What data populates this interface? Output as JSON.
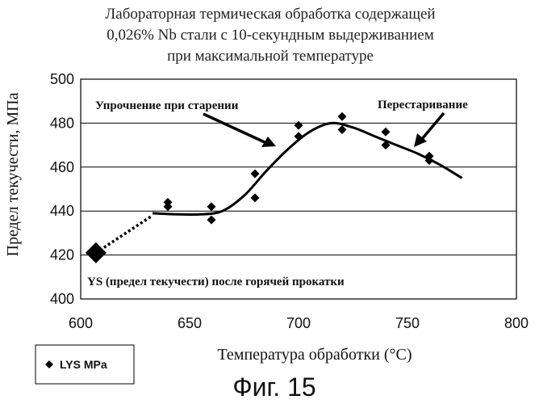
{
  "chart_data": {
    "type": "scatter",
    "title_lines": [
      "Лабораторная термическая обработка содержащей",
      "0,026% Nb стали с 10-секундным выдерживанием",
      "при максимальной температуре"
    ],
    "xlabel": "Температура обработки (°C)",
    "ylabel": "Предел текучести, МПа",
    "xlim": [
      600,
      800
    ],
    "ylim": [
      400,
      500
    ],
    "x_ticks": [
      600,
      650,
      700,
      750,
      800
    ],
    "y_ticks": [
      400,
      420,
      440,
      460,
      480,
      500
    ],
    "x_tick_labels": [
      "600",
      "650",
      "700",
      "750",
      "800"
    ],
    "y_tick_labels": [
      "400",
      "420",
      "440",
      "460",
      "480",
      "500"
    ],
    "grid": "horizontal",
    "legend": {
      "position": "bottom-left",
      "entries": [
        "LYS MPa"
      ]
    },
    "series": [
      {
        "name": "LYS MPa",
        "marker": "diamond",
        "points": [
          [
            640,
            444
          ],
          [
            640,
            442
          ],
          [
            660,
            442
          ],
          [
            660,
            436
          ],
          [
            680,
            457
          ],
          [
            680,
            446
          ],
          [
            700,
            479
          ],
          [
            700,
            474
          ],
          [
            720,
            483
          ],
          [
            720,
            477
          ],
          [
            740,
            476
          ],
          [
            740,
            470
          ],
          [
            760,
            465
          ],
          [
            760,
            463
          ]
        ]
      }
    ],
    "hot_rolled_point": {
      "x": 607,
      "y": 421,
      "label": "YS (предел текучести) после горячей прокатки"
    },
    "dotted_line": [
      [
        607,
        421
      ],
      [
        633,
        438
      ]
    ],
    "trend_curve": [
      [
        633,
        439
      ],
      [
        645,
        438.5
      ],
      [
        655,
        438.5
      ],
      [
        665,
        440
      ],
      [
        675,
        447
      ],
      [
        685,
        458
      ],
      [
        695,
        468
      ],
      [
        705,
        476
      ],
      [
        715,
        480
      ],
      [
        725,
        478
      ],
      [
        735,
        474
      ],
      [
        745,
        470
      ],
      [
        755,
        466
      ],
      [
        765,
        461
      ],
      [
        775,
        455
      ]
    ],
    "annotations": [
      {
        "text": "Упрочнение при старении",
        "arrow_to": [
          689,
          468
        ]
      },
      {
        "text": "Перестаривание",
        "arrow_to": [
          751,
          467
        ]
      }
    ],
    "figure_label": "Фиг. 15"
  }
}
